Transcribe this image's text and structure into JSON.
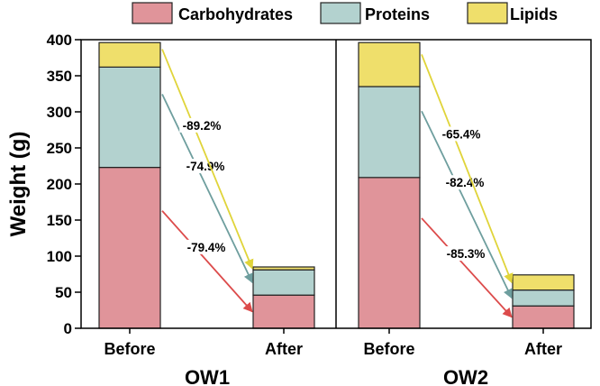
{
  "chart_data": {
    "type": "bar",
    "stacked": true,
    "ylabel": "Weight (g)",
    "ylim": [
      0,
      400
    ],
    "yticks": [
      0,
      50,
      100,
      150,
      200,
      250,
      300,
      350,
      400
    ],
    "legend_position": "top-center",
    "series": [
      {
        "name": "Carbohydrates",
        "color": "#e0949a"
      },
      {
        "name": "Proteins",
        "color": "#b3d2cf"
      },
      {
        "name": "Lipids",
        "color": "#efdf6b"
      }
    ],
    "panels": [
      {
        "name": "OW1",
        "categories": [
          "Before",
          "After"
        ],
        "values": {
          "Carbohydrates": [
            223,
            46
          ],
          "Proteins": [
            139,
            35
          ],
          "Lipids": [
            34,
            4
          ]
        },
        "reductions": {
          "Carbohydrates": "-79.4%",
          "Proteins": "-74.9%",
          "Lipids": "-89.2%"
        }
      },
      {
        "name": "OW2",
        "categories": [
          "Before",
          "After"
        ],
        "values": {
          "Carbohydrates": [
            209,
            31
          ],
          "Proteins": [
            126,
            22
          ],
          "Lipids": [
            61,
            21
          ]
        },
        "reductions": {
          "Carbohydrates": "-85.3%",
          "Proteins": "-82.4%",
          "Lipids": "-65.4%"
        }
      }
    ],
    "arrow_colors": {
      "Carbohydrates": "#dc4b4b",
      "Proteins": "#6e9e9e",
      "Lipids": "#e0d43a"
    }
  }
}
